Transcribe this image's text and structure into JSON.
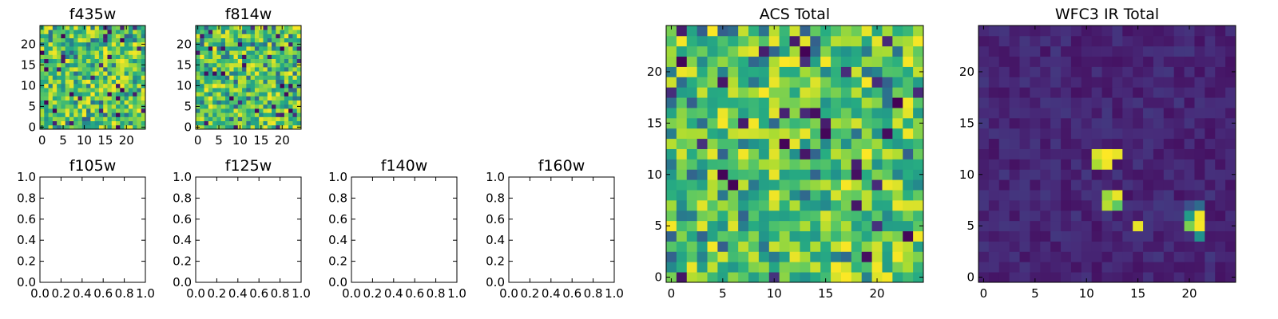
{
  "colormap": {
    "name": "viridis",
    "low": "#440154",
    "mid": "#21918c",
    "high": "#fde725"
  },
  "chart_data": [
    {
      "type": "heatmap",
      "title": "f435w",
      "grid": [
        25,
        25
      ],
      "xlim": [
        -0.5,
        24.5
      ],
      "ylim": [
        -0.5,
        24.5
      ],
      "xticks": [
        "0",
        "5",
        "10",
        "15",
        "20"
      ],
      "yticks": [
        "0",
        "5",
        "10",
        "15",
        "20"
      ],
      "texture": "noise",
      "seed": 11
    },
    {
      "type": "heatmap",
      "title": "f814w",
      "grid": [
        25,
        25
      ],
      "xlim": [
        -0.5,
        24.5
      ],
      "ylim": [
        -0.5,
        24.5
      ],
      "xticks": [
        "0",
        "5",
        "10",
        "15",
        "20"
      ],
      "yticks": [
        "0",
        "5",
        "10",
        "15",
        "20"
      ],
      "texture": "noise",
      "seed": 29
    },
    {
      "type": "table",
      "title": "f105w",
      "xlim": [
        0,
        1
      ],
      "ylim": [
        0,
        1
      ],
      "xticks": [
        "0.0",
        "0.2",
        "0.4",
        "0.6",
        "0.8",
        "1.0"
      ],
      "yticks": [
        "0.0",
        "0.2",
        "0.4",
        "0.6",
        "0.8",
        "1.0"
      ]
    },
    {
      "type": "table",
      "title": "f125w",
      "xlim": [
        0,
        1
      ],
      "ylim": [
        0,
        1
      ],
      "xticks": [
        "0.0",
        "0.2",
        "0.4",
        "0.6",
        "0.8",
        "1.0"
      ],
      "yticks": [
        "0.0",
        "0.2",
        "0.4",
        "0.6",
        "0.8",
        "1.0"
      ]
    },
    {
      "type": "table",
      "title": "f140w",
      "xlim": [
        0,
        1
      ],
      "ylim": [
        0,
        1
      ],
      "xticks": [
        "0.0",
        "0.2",
        "0.4",
        "0.6",
        "0.8",
        "1.0"
      ],
      "yticks": [
        "0.0",
        "0.2",
        "0.4",
        "0.6",
        "0.8",
        "1.0"
      ]
    },
    {
      "type": "table",
      "title": "f160w",
      "xlim": [
        0,
        1
      ],
      "ylim": [
        0,
        1
      ],
      "xticks": [
        "0.0",
        "0.2",
        "0.4",
        "0.6",
        "0.8",
        "1.0"
      ],
      "yticks": [
        "0.0",
        "0.2",
        "0.4",
        "0.6",
        "0.8",
        "1.0"
      ]
    },
    {
      "type": "heatmap",
      "title": "ACS Total",
      "grid": [
        25,
        25
      ],
      "xlim": [
        -0.5,
        24.5
      ],
      "ylim": [
        -0.5,
        24.5
      ],
      "xticks": [
        "0",
        "5",
        "10",
        "15",
        "20"
      ],
      "yticks": [
        "0",
        "5",
        "10",
        "15",
        "20"
      ],
      "texture": "noise",
      "seed": 47
    },
    {
      "type": "heatmap",
      "title": "WFC3 IR Total",
      "grid": [
        25,
        25
      ],
      "xlim": [
        -0.5,
        24.5
      ],
      "ylim": [
        -0.5,
        24.5
      ],
      "xticks": [
        "0",
        "5",
        "10",
        "15",
        "20"
      ],
      "yticks": [
        "0",
        "5",
        "10",
        "15",
        "20"
      ],
      "texture": "dark-background",
      "seed": 53,
      "bright_pixels": [
        {
          "x": 11,
          "y": 12,
          "v": 0.95
        },
        {
          "x": 12,
          "y": 12,
          "v": 1.0
        },
        {
          "x": 13,
          "y": 12,
          "v": 0.97
        },
        {
          "x": 11,
          "y": 11,
          "v": 0.88
        },
        {
          "x": 12,
          "y": 11,
          "v": 0.98
        },
        {
          "x": 12,
          "y": 8,
          "v": 0.85
        },
        {
          "x": 13,
          "y": 8,
          "v": 0.97
        },
        {
          "x": 12,
          "y": 7,
          "v": 0.9
        },
        {
          "x": 13,
          "y": 7,
          "v": 0.75
        },
        {
          "x": 15,
          "y": 5,
          "v": 0.97
        },
        {
          "x": 20,
          "y": 6,
          "v": 0.55
        },
        {
          "x": 21,
          "y": 6,
          "v": 0.98
        },
        {
          "x": 20,
          "y": 5,
          "v": 0.8
        },
        {
          "x": 21,
          "y": 5,
          "v": 0.99
        },
        {
          "x": 21,
          "y": 4,
          "v": 0.5
        },
        {
          "x": 20,
          "y": 7,
          "v": 0.25
        },
        {
          "x": 21,
          "y": 7,
          "v": 0.35
        }
      ]
    }
  ]
}
